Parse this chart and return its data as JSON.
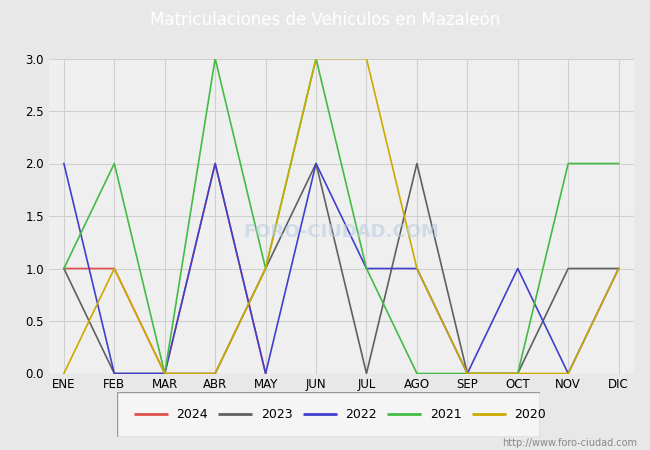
{
  "title": "Matriculaciones de Vehiculos en Mazaleón",
  "title_bg_color": "#5b7fc4",
  "title_text_color": "#ffffff",
  "months": [
    "ENE",
    "FEB",
    "MAR",
    "ABR",
    "MAY",
    "JUN",
    "JUL",
    "AGO",
    "SEP",
    "OCT",
    "NOV",
    "DIC"
  ],
  "series": {
    "2024": {
      "color": "#e05050",
      "data": [
        1,
        1,
        0,
        2,
        0,
        null,
        null,
        null,
        null,
        null,
        null,
        null
      ]
    },
    "2023": {
      "color": "#606060",
      "data": [
        1,
        0,
        0,
        0,
        1,
        2,
        0,
        2,
        0,
        0,
        1,
        1
      ]
    },
    "2022": {
      "color": "#4040cc",
      "data": [
        2,
        0,
        0,
        2,
        0,
        2,
        1,
        1,
        0,
        1,
        0,
        1
      ]
    },
    "2021": {
      "color": "#44bb44",
      "data": [
        1,
        2,
        0,
        3,
        1,
        3,
        1,
        0,
        0,
        0,
        2,
        2
      ]
    },
    "2020": {
      "color": "#ccaa00",
      "data": [
        0,
        1,
        0,
        0,
        1,
        3,
        3,
        1,
        0,
        0,
        0,
        1
      ]
    }
  },
  "ylim": [
    0,
    3.0
  ],
  "yticks": [
    0.0,
    0.5,
    1.0,
    1.5,
    2.0,
    2.5,
    3.0
  ],
  "figure_bg_color": "#e8e8e8",
  "plot_bg_color": "#efefef",
  "grid_color": "#d0d0d0",
  "watermark_text": "http://www.foro-ciudad.com",
  "watermark_bg": "FORO-CIUDAD.COM",
  "legend_years": [
    "2024",
    "2023",
    "2022",
    "2021",
    "2020"
  ]
}
